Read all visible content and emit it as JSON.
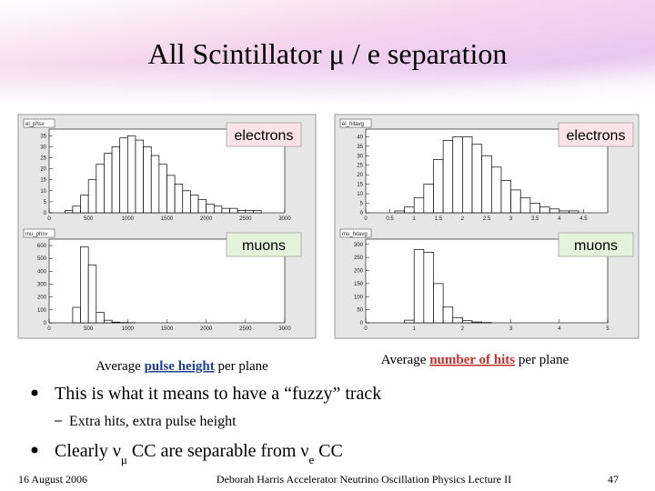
{
  "header": {
    "title": "All Scintillator μ / e separation"
  },
  "chart_data": [
    {
      "type": "histogram",
      "title": "el_phsv",
      "annotation": "electrons",
      "color": "#000000",
      "bins": [
        0,
        100,
        200,
        300,
        400,
        500,
        600,
        700,
        800,
        900,
        1000,
        1100,
        1200,
        1300,
        1400,
        1500,
        1600,
        1700,
        1800,
        1900,
        2000,
        2100,
        2200,
        2300,
        2400,
        2500,
        2600,
        2700,
        2800,
        2900,
        3000
      ],
      "values": [
        0,
        0,
        1,
        3,
        8,
        15,
        22,
        27,
        30,
        34,
        35,
        33,
        30,
        26,
        22,
        17,
        13,
        10,
        8,
        6,
        4,
        3,
        2,
        2,
        1,
        1,
        1,
        0,
        0,
        0
      ],
      "xlim": [
        0,
        3000
      ],
      "xticks": [
        0,
        500,
        1000,
        1500,
        2000,
        2500,
        3000
      ],
      "ylim": [
        0,
        38
      ],
      "yticks": [
        0,
        5,
        10,
        15,
        20,
        25,
        30,
        35
      ]
    },
    {
      "type": "histogram",
      "title": "mu_phsv",
      "annotation": "muons",
      "color": "#000000",
      "bins": [
        0,
        100,
        200,
        300,
        400,
        500,
        600,
        700,
        800,
        900,
        1000,
        1100,
        1200,
        1300,
        1400,
        1500,
        1600,
        1700,
        1800,
        1900,
        2000,
        2100,
        2200,
        2300,
        2400,
        2500,
        2600,
        2700,
        2800,
        2900,
        3000
      ],
      "values": [
        0,
        0,
        0,
        120,
        590,
        450,
        80,
        20,
        5,
        2,
        1,
        0,
        0,
        0,
        0,
        0,
        0,
        0,
        0,
        0,
        0,
        0,
        0,
        0,
        0,
        0,
        0,
        0,
        0,
        0
      ],
      "xlim": [
        0,
        3000
      ],
      "xticks": [
        0,
        500,
        1000,
        1500,
        2000,
        2500,
        3000
      ],
      "ylim": [
        0,
        650
      ],
      "yticks": [
        0,
        100,
        200,
        300,
        400,
        500,
        600
      ]
    },
    {
      "type": "histogram",
      "title": "el_hitavg",
      "annotation": "electrons",
      "color": "#000000",
      "bins": [
        0,
        0.2,
        0.4,
        0.6,
        0.8,
        1,
        1.2,
        1.4,
        1.6,
        1.8,
        2,
        2.2,
        2.4,
        2.6,
        2.8,
        3,
        3.2,
        3.4,
        3.6,
        3.8,
        4,
        4.2,
        4.4,
        4.6,
        4.8,
        5
      ],
      "values": [
        0,
        0,
        0,
        1,
        3,
        8,
        15,
        28,
        38,
        40,
        40,
        36,
        30,
        24,
        17,
        12,
        8,
        5,
        3,
        2,
        1,
        1,
        0,
        0,
        0
      ],
      "xlim": [
        0,
        5
      ],
      "xticks": [
        0,
        0.5,
        1,
        1.5,
        2,
        2.5,
        3,
        3.5,
        4,
        4.5
      ],
      "ylim": [
        0,
        44
      ],
      "yticks": [
        0,
        5,
        10,
        15,
        20,
        25,
        30,
        35,
        40
      ]
    },
    {
      "type": "histogram",
      "title": "mu_hitavg",
      "annotation": "muons",
      "color": "#000000",
      "bins": [
        0,
        0.2,
        0.4,
        0.6,
        0.8,
        1,
        1.2,
        1.4,
        1.6,
        1.8,
        2,
        2.2,
        2.4,
        2.6,
        2.8,
        3,
        3.2,
        3.4,
        3.6,
        3.8,
        4,
        4.2,
        4.4,
        4.6,
        4.8,
        5
      ],
      "values": [
        0,
        0,
        0,
        0,
        10,
        280,
        270,
        150,
        60,
        20,
        8,
        3,
        1,
        0,
        0,
        0,
        0,
        0,
        0,
        0,
        0,
        0,
        0,
        0,
        0
      ],
      "xlim": [
        0,
        5
      ],
      "xticks": [
        0,
        1,
        2,
        3,
        4,
        5
      ],
      "ylim": [
        0,
        320
      ],
      "yticks": [
        0,
        50,
        100,
        150,
        200,
        250,
        300
      ]
    }
  ],
  "captions": [
    {
      "parts": [
        "Average ",
        "pulse height",
        " per plane"
      ],
      "color": "#1f3f8f"
    },
    {
      "parts": [
        "Average ",
        "number of hits",
        " per plane"
      ],
      "color": "#c0302a"
    }
  ],
  "bullets": [
    {
      "parts": [
        "This is what it means to have a “fuzzy” track"
      ]
    },
    {
      "parts": [
        "Extra hits, extra pulse height"
      ]
    },
    {
      "parts": [
        "Clearly ν",
        "μ",
        " CC are separable from ν",
        "e",
        " CC"
      ]
    }
  ],
  "footer": {
    "date": "16 August 2006",
    "author": "Deborah Harris Accelerator Neutrino Oscillation Physics Lecture II",
    "page": 47
  }
}
